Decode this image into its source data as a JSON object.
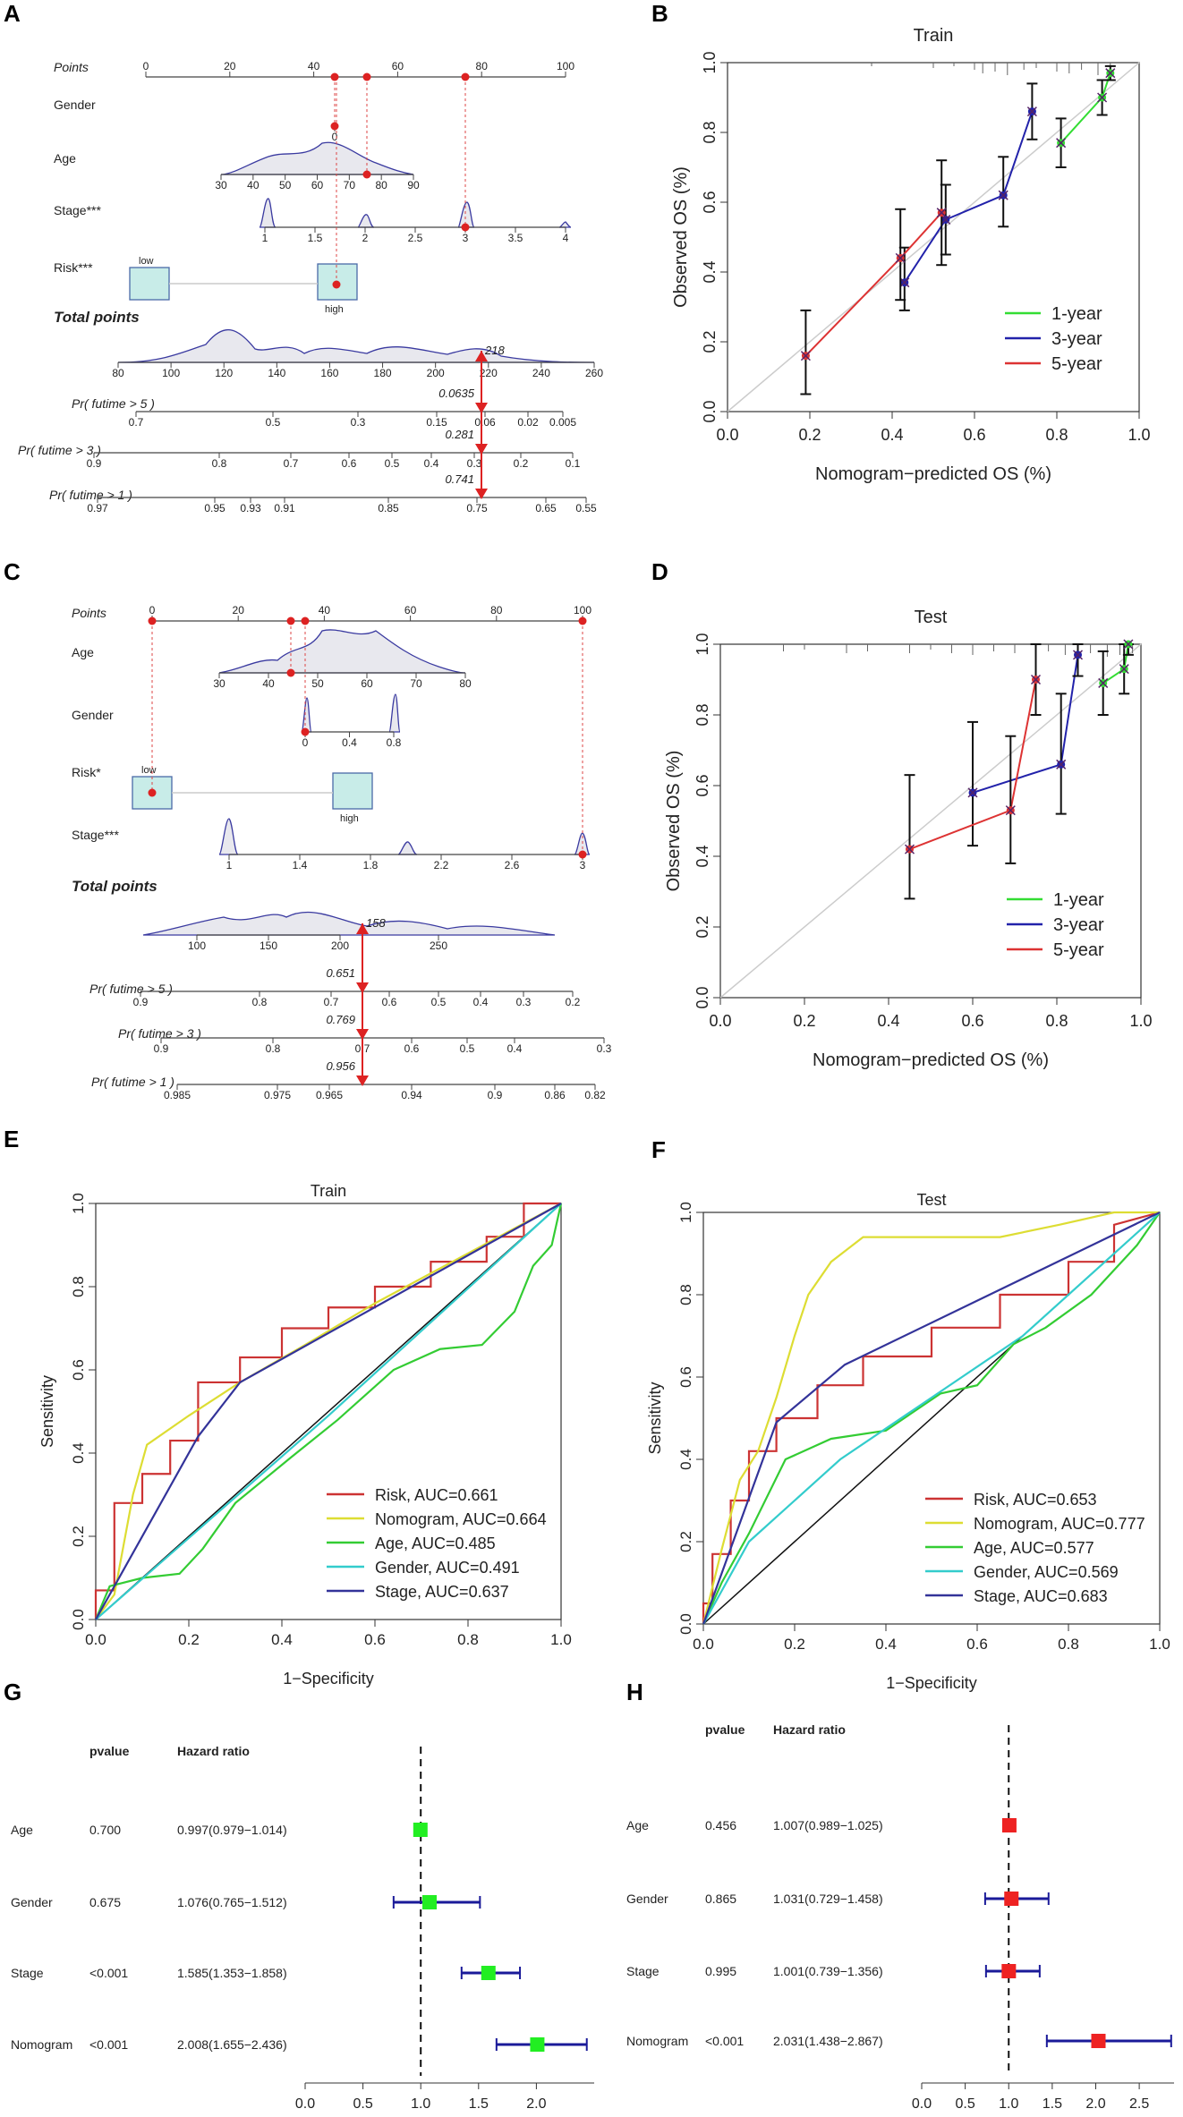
{
  "panel_labels": [
    "A",
    "B",
    "C",
    "D",
    "E",
    "F",
    "G",
    "H"
  ],
  "chart_data": [
    {
      "panel": "A",
      "type": "nomogram",
      "rows": [
        {
          "label": "Points",
          "ticks": [
            "0",
            "20",
            "40",
            "60",
            "80",
            "100"
          ]
        },
        {
          "label": "Gender",
          "ticks": [
            "0"
          ]
        },
        {
          "label": "Age",
          "ticks": [
            "30",
            "40",
            "50",
            "60",
            "70",
            "80",
            "90"
          ]
        },
        {
          "label": "Stage***",
          "ticks": [
            "1",
            "1.5",
            "2",
            "2.5",
            "3",
            "3.5",
            "4"
          ]
        },
        {
          "label": "Risk***",
          "ticks": [
            "low",
            "high"
          ]
        },
        {
          "label": "Total points",
          "ticks": [
            "80",
            "100",
            "120",
            "140",
            "160",
            "180",
            "200",
            "220",
            "240",
            "260"
          ]
        },
        {
          "label": "Pr( futime > 5 )",
          "ticks": [
            "0.7",
            "0.5",
            "0.3",
            "0.15",
            "0.06",
            "0.02",
            "0.005"
          ]
        },
        {
          "label": "Pr( futime > 3 )",
          "ticks": [
            "0.9",
            "0.8",
            "0.7",
            "0.6",
            "0.5",
            "0.4",
            "0.3",
            "0.2",
            "0.1"
          ]
        },
        {
          "label": "Pr( futime > 1 )",
          "ticks": [
            "0.97",
            "0.95",
            "0.93",
            "0.91",
            "0.85",
            "0.75",
            "0.65",
            "0.55"
          ]
        }
      ],
      "total_value": "218",
      "predictions": [
        "0.0635",
        "0.281",
        "0.741"
      ]
    },
    {
      "panel": "B",
      "type": "line",
      "title": "Train",
      "xlabel": "Nomogram−predicted OS (%)",
      "ylabel": "Observed OS (%)",
      "xlim": [
        0,
        1
      ],
      "ylim": [
        0,
        1
      ],
      "xticks": [
        "0.0",
        "0.2",
        "0.4",
        "0.6",
        "0.8",
        "1.0"
      ],
      "yticks": [
        "0.0",
        "0.2",
        "0.4",
        "0.6",
        "0.8",
        "1.0"
      ],
      "legend": [
        "1-year",
        "3-year",
        "5-year"
      ],
      "series": [
        {
          "name": "1-year",
          "color": "#33dd33",
          "x": [
            0.81,
            0.91,
            0.93
          ],
          "y": [
            0.77,
            0.9,
            0.97
          ],
          "lo": [
            0.7,
            0.85,
            0.95
          ],
          "hi": [
            0.84,
            0.95,
            0.99
          ]
        },
        {
          "name": "3-year",
          "color": "#2222aa",
          "x": [
            0.43,
            0.53,
            0.67,
            0.74
          ],
          "y": [
            0.37,
            0.55,
            0.62,
            0.86
          ],
          "lo": [
            0.29,
            0.45,
            0.53,
            0.78
          ],
          "hi": [
            0.47,
            0.65,
            0.73,
            0.94
          ]
        },
        {
          "name": "5-year",
          "color": "#dd3333",
          "x": [
            0.19,
            0.42,
            0.52
          ],
          "y": [
            0.16,
            0.44,
            0.57
          ],
          "lo": [
            0.05,
            0.32,
            0.42
          ],
          "hi": [
            0.29,
            0.58,
            0.72
          ]
        }
      ]
    },
    {
      "panel": "C",
      "type": "nomogram",
      "rows": [
        {
          "label": "Points",
          "ticks": [
            "0",
            "20",
            "40",
            "60",
            "80",
            "100"
          ]
        },
        {
          "label": "Age",
          "ticks": [
            "30",
            "40",
            "50",
            "60",
            "70",
            "80"
          ]
        },
        {
          "label": "Gender",
          "ticks": [
            "0",
            "0.4",
            "0.8"
          ]
        },
        {
          "label": "Risk*",
          "ticks": [
            "low",
            "high"
          ]
        },
        {
          "label": "Stage***",
          "ticks": [
            "1",
            "1.4",
            "1.8",
            "2.2",
            "2.6",
            "3"
          ]
        },
        {
          "label": "Total points",
          "ticks": [
            "100",
            "150",
            "200",
            "250"
          ]
        },
        {
          "label": "Pr( futime > 5 )",
          "ticks": [
            "0.9",
            "0.8",
            "0.7",
            "0.6",
            "0.5",
            "0.4",
            "0.3",
            "0.2"
          ]
        },
        {
          "label": "Pr( futime > 3 )",
          "ticks": [
            "0.9",
            "0.8",
            "0.7",
            "0.6",
            "0.5",
            "0.4",
            "0.3"
          ]
        },
        {
          "label": "Pr( futime > 1 )",
          "ticks": [
            "0.985",
            "0.975",
            "0.965",
            "0.94",
            "0.9",
            "0.86",
            "0.82"
          ]
        }
      ],
      "total_value": "158",
      "predictions": [
        "0.651",
        "0.769",
        "0.956"
      ]
    },
    {
      "panel": "D",
      "type": "line",
      "title": "Test",
      "xlabel": "Nomogram−predicted OS (%)",
      "ylabel": "Observed OS (%)",
      "xlim": [
        0,
        1
      ],
      "ylim": [
        0,
        1
      ],
      "xticks": [
        "0.0",
        "0.2",
        "0.4",
        "0.6",
        "0.8",
        "1.0"
      ],
      "yticks": [
        "0.0",
        "0.2",
        "0.4",
        "0.6",
        "0.8",
        "1.0"
      ],
      "legend": [
        "1-year",
        "3-year",
        "5-year"
      ],
      "series": [
        {
          "name": "1-year",
          "color": "#33dd33",
          "x": [
            0.91,
            0.96,
            0.97
          ],
          "y": [
            0.89,
            0.93,
            1.0
          ],
          "lo": [
            0.8,
            0.86,
            0.97
          ],
          "hi": [
            0.98,
            1.0,
            1.0
          ]
        },
        {
          "name": "3-year",
          "color": "#2222aa",
          "x": [
            0.6,
            0.81,
            0.85
          ],
          "y": [
            0.58,
            0.66,
            0.97
          ],
          "lo": [
            0.43,
            0.52,
            0.91
          ],
          "hi": [
            0.78,
            0.86,
            1.0
          ]
        },
        {
          "name": "5-year",
          "color": "#dd3333",
          "x": [
            0.45,
            0.69,
            0.75
          ],
          "y": [
            0.42,
            0.53,
            0.9
          ],
          "lo": [
            0.28,
            0.38,
            0.8
          ],
          "hi": [
            0.63,
            0.74,
            1.0
          ]
        }
      ]
    },
    {
      "panel": "E",
      "type": "line",
      "title": "Train",
      "xlabel": "1−Specificity",
      "ylabel": "Sensitivity",
      "xlim": [
        0,
        1
      ],
      "ylim": [
        0,
        1
      ],
      "xticks": [
        "0.0",
        "0.2",
        "0.4",
        "0.6",
        "0.8",
        "1.0"
      ],
      "yticks": [
        "0.0",
        "0.2",
        "0.4",
        "0.6",
        "0.8",
        "1.0"
      ],
      "legend": [
        "Risk, AUC=0.661",
        "Nomogram, AUC=0.664",
        "Age, AUC=0.485",
        "Gender, AUC=0.491",
        "Stage, AUC=0.637"
      ],
      "series": [
        {
          "name": "Risk",
          "auc": 0.661,
          "color": "#cc3333",
          "step": true,
          "x": [
            0,
            0,
            0.04,
            0.04,
            0.1,
            0.1,
            0.16,
            0.16,
            0.22,
            0.22,
            0.31,
            0.31,
            0.4,
            0.4,
            0.5,
            0.5,
            0.6,
            0.6,
            0.72,
            0.72,
            0.84,
            0.84,
            0.92,
            0.92,
            1.0
          ],
          "y": [
            0,
            0.07,
            0.07,
            0.28,
            0.28,
            0.35,
            0.35,
            0.43,
            0.43,
            0.57,
            0.57,
            0.63,
            0.63,
            0.7,
            0.7,
            0.75,
            0.75,
            0.8,
            0.8,
            0.86,
            0.86,
            0.92,
            0.92,
            1.0,
            1.0
          ]
        },
        {
          "name": "Nomogram",
          "auc": 0.664,
          "color": "#dddd33",
          "x": [
            0,
            0.04,
            0.08,
            0.11,
            0.2,
            0.31,
            0.45,
            0.6,
            0.75,
            0.9,
            1.0
          ],
          "y": [
            0,
            0.06,
            0.3,
            0.42,
            0.49,
            0.57,
            0.66,
            0.76,
            0.85,
            0.94,
            1.0
          ]
        },
        {
          "name": "Age",
          "auc": 0.485,
          "color": "#33cc33",
          "x": [
            0,
            0.03,
            0.1,
            0.18,
            0.23,
            0.3,
            0.42,
            0.52,
            0.64,
            0.74,
            0.83,
            0.9,
            0.94,
            0.98,
            1.0
          ],
          "y": [
            0,
            0.08,
            0.1,
            0.11,
            0.17,
            0.28,
            0.39,
            0.48,
            0.6,
            0.65,
            0.66,
            0.74,
            0.85,
            0.9,
            1.0
          ]
        },
        {
          "name": "Gender",
          "auc": 0.491,
          "color": "#33cccc",
          "x": [
            0,
            0.5,
            1.0
          ],
          "y": [
            0,
            0.49,
            1.0
          ]
        },
        {
          "name": "Stage",
          "auc": 0.637,
          "color": "#333399",
          "x": [
            0,
            0.22,
            0.31,
            1.0
          ],
          "y": [
            0,
            0.44,
            0.57,
            1.0
          ]
        }
      ]
    },
    {
      "panel": "F",
      "type": "line",
      "title": "Test",
      "xlabel": "1−Specificity",
      "ylabel": "Sensitivity",
      "xlim": [
        0,
        1
      ],
      "ylim": [
        0,
        1
      ],
      "xticks": [
        "0.0",
        "0.2",
        "0.4",
        "0.6",
        "0.8",
        "1.0"
      ],
      "yticks": [
        "0.0",
        "0.2",
        "0.4",
        "0.6",
        "0.8",
        "1.0"
      ],
      "legend": [
        "Risk, AUC=0.653",
        "Nomogram, AUC=0.777",
        "Age, AUC=0.577",
        "Gender, AUC=0.569",
        "Stage, AUC=0.683"
      ],
      "series": [
        {
          "name": "Risk",
          "auc": 0.653,
          "color": "#cc3333",
          "step": true,
          "x": [
            0,
            0,
            0.02,
            0.02,
            0.06,
            0.06,
            0.1,
            0.1,
            0.16,
            0.16,
            0.25,
            0.25,
            0.35,
            0.35,
            0.5,
            0.5,
            0.65,
            0.65,
            0.8,
            0.8,
            0.9,
            0.9,
            1.0
          ],
          "y": [
            0,
            0.05,
            0.05,
            0.17,
            0.17,
            0.3,
            0.3,
            0.42,
            0.42,
            0.5,
            0.5,
            0.58,
            0.58,
            0.65,
            0.65,
            0.72,
            0.72,
            0.8,
            0.8,
            0.88,
            0.88,
            0.97,
            1.0
          ]
        },
        {
          "name": "Nomogram",
          "auc": 0.777,
          "color": "#dddd33",
          "x": [
            0,
            0.04,
            0.08,
            0.12,
            0.16,
            0.2,
            0.23,
            0.28,
            0.35,
            0.5,
            0.65,
            0.78,
            0.9,
            1.0
          ],
          "y": [
            0,
            0.18,
            0.35,
            0.42,
            0.55,
            0.7,
            0.8,
            0.88,
            0.94,
            0.94,
            0.94,
            0.97,
            1.0,
            1.0
          ]
        },
        {
          "name": "Age",
          "auc": 0.577,
          "color": "#33cc33",
          "x": [
            0,
            0.04,
            0.1,
            0.18,
            0.28,
            0.4,
            0.52,
            0.6,
            0.68,
            0.75,
            0.85,
            0.95,
            1.0
          ],
          "y": [
            0,
            0.1,
            0.22,
            0.4,
            0.45,
            0.47,
            0.56,
            0.58,
            0.68,
            0.72,
            0.8,
            0.92,
            1.0
          ]
        },
        {
          "name": "Gender",
          "auc": 0.569,
          "color": "#33cccc",
          "x": [
            0,
            0.1,
            0.3,
            0.5,
            0.7,
            1.0
          ],
          "y": [
            0,
            0.2,
            0.4,
            0.55,
            0.7,
            1.0
          ]
        },
        {
          "name": "Stage",
          "auc": 0.683,
          "color": "#333399",
          "x": [
            0,
            0.16,
            0.31,
            1.0
          ],
          "y": [
            0,
            0.49,
            0.63,
            1.0
          ]
        }
      ]
    },
    {
      "panel": "G",
      "type": "forest",
      "headers": {
        "pvalue": "pvalue",
        "hr": "Hazard ratio"
      },
      "xlabel": "Hazard ratio",
      "ref": 1.0,
      "xlim": [
        0,
        2.5
      ],
      "xticks": [
        "0.0",
        "0.5",
        "1.0",
        "1.5",
        "2.0"
      ],
      "marker_color": "#22ee22",
      "rows": [
        {
          "name": "Age",
          "pvalue": "0.700",
          "hr_text": "0.997(0.979−1.014)",
          "hr": 0.997,
          "lo": 0.979,
          "hi": 1.014
        },
        {
          "name": "Gender",
          "pvalue": "0.675",
          "hr_text": "1.076(0.765−1.512)",
          "hr": 1.076,
          "lo": 0.765,
          "hi": 1.512
        },
        {
          "name": "Stage",
          "pvalue": "<0.001",
          "hr_text": "1.585(1.353−1.858)",
          "hr": 1.585,
          "lo": 1.353,
          "hi": 1.858
        },
        {
          "name": "Nomogram",
          "pvalue": "<0.001",
          "hr_text": "2.008(1.655−2.436)",
          "hr": 2.008,
          "lo": 1.655,
          "hi": 2.436
        }
      ]
    },
    {
      "panel": "H",
      "type": "forest",
      "headers": {
        "pvalue": "pvalue",
        "hr": "Hazard ratio"
      },
      "xlabel": "Hazard ratio",
      "ref": 1.0,
      "xlim": [
        0,
        2.9
      ],
      "xticks": [
        "0.0",
        "0.5",
        "1.0",
        "1.5",
        "2.0",
        "2.5"
      ],
      "marker_color": "#ee2222",
      "rows": [
        {
          "name": "Age",
          "pvalue": "0.456",
          "hr_text": "1.007(0.989−1.025)",
          "hr": 1.007,
          "lo": 0.989,
          "hi": 1.025
        },
        {
          "name": "Gender",
          "pvalue": "0.865",
          "hr_text": "1.031(0.729−1.458)",
          "hr": 1.031,
          "lo": 0.729,
          "hi": 1.458
        },
        {
          "name": "Stage",
          "pvalue": "0.995",
          "hr_text": "1.001(0.739−1.356)",
          "hr": 1.001,
          "lo": 0.739,
          "hi": 1.356
        },
        {
          "name": "Nomogram",
          "pvalue": "<0.001",
          "hr_text": "2.031(1.438−2.867)",
          "hr": 2.031,
          "lo": 1.438,
          "hi": 2.867
        }
      ]
    }
  ]
}
